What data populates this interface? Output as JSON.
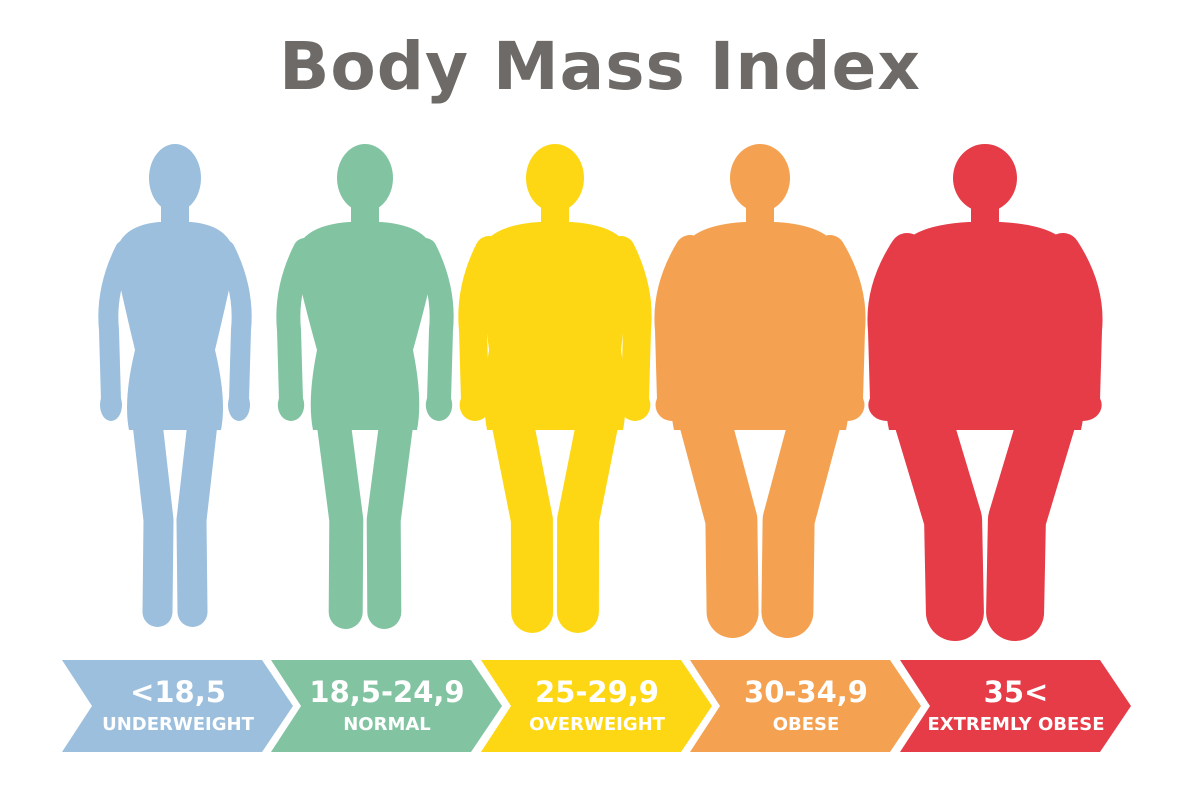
{
  "title": "Body Mass Index",
  "categories": [
    {
      "range": "<18,5",
      "label": "UNDERWEIGHT",
      "color": "#9bbfdd"
    },
    {
      "range": "18,5-24,9",
      "label": "NORMAL",
      "color": "#82c4a2"
    },
    {
      "range": "25-29,9",
      "label": "OVERWEIGHT",
      "color": "#fdd714"
    },
    {
      "range": "30-34,9",
      "label": "OBESE",
      "color": "#f4a252"
    },
    {
      "range": "35<",
      "label": "EXTREMLY OBESE",
      "color": "#e53c48"
    }
  ]
}
